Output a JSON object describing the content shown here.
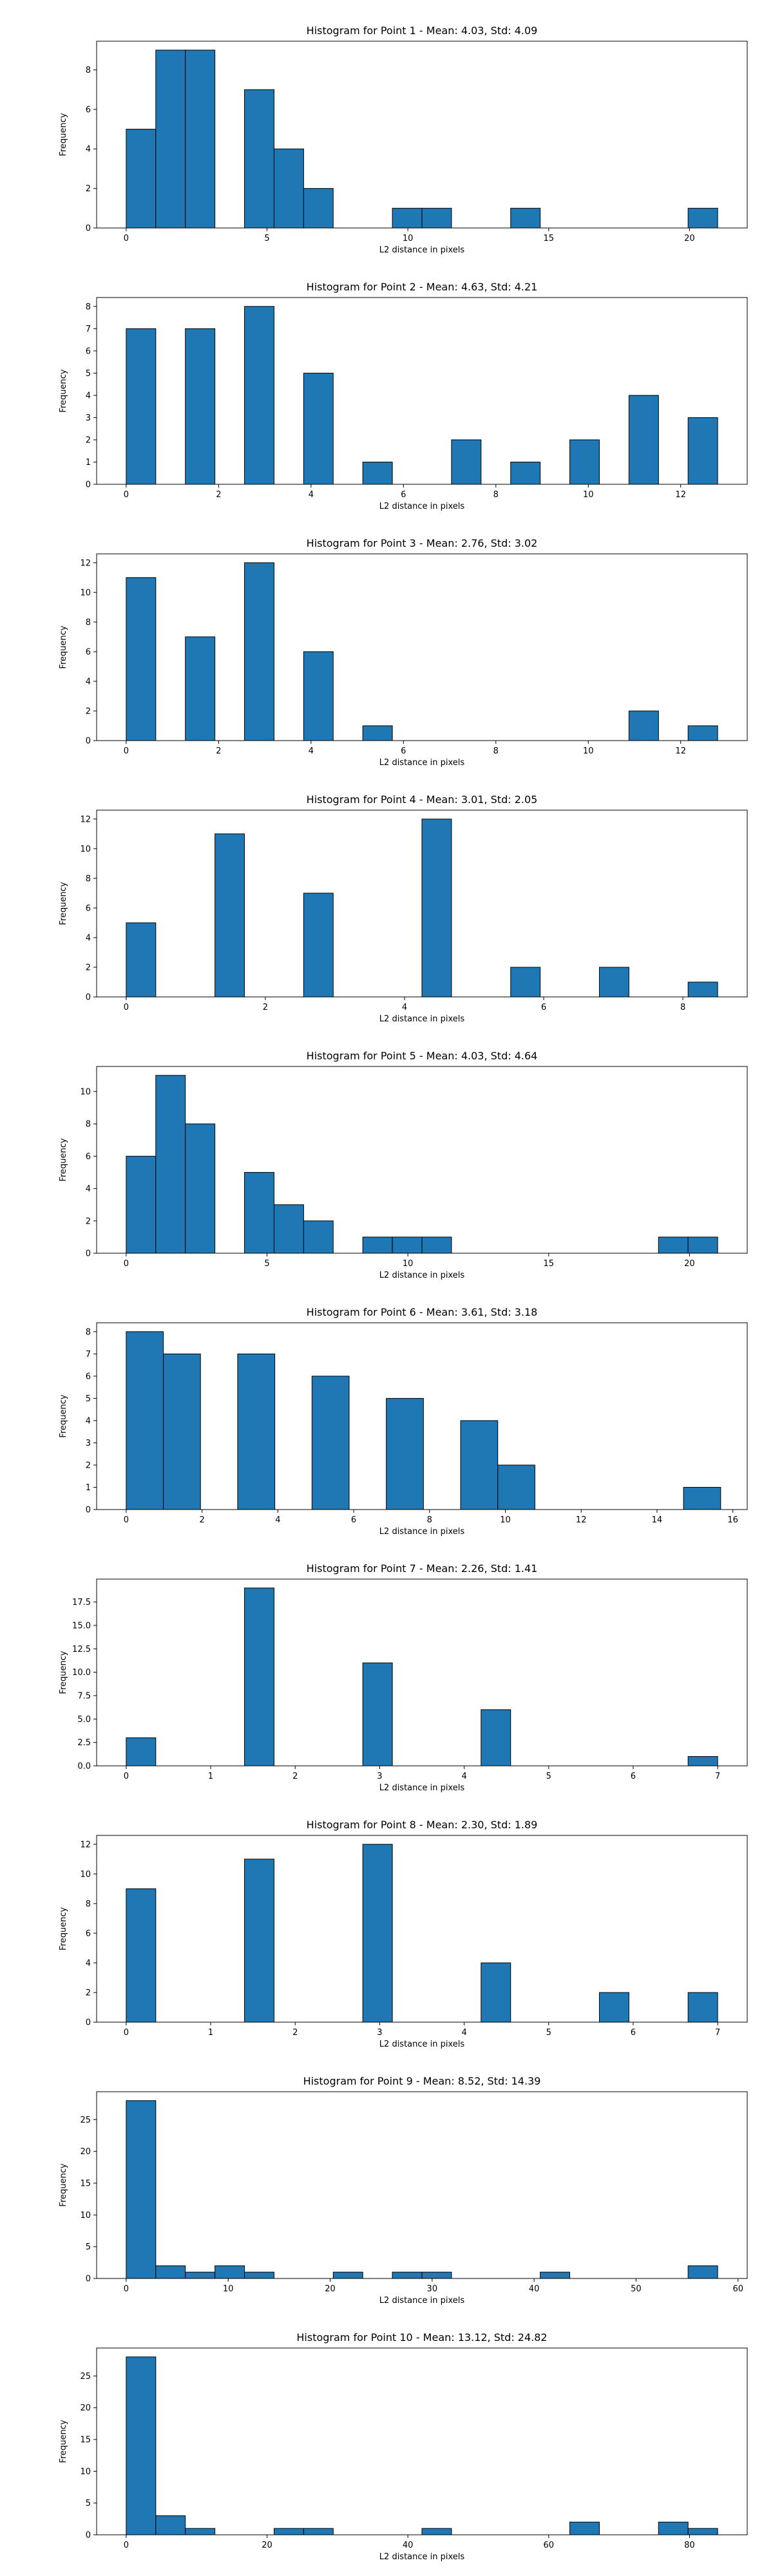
{
  "chart_data": [
    {
      "type": "bar",
      "title": "Histogram for Point 1 - Mean: 4.03, Std: 4.09",
      "xlabel": "L2 distance in pixels",
      "ylabel": "Frequency",
      "xlim": [
        -1.05,
        22.05
      ],
      "ylim": [
        0,
        9.45
      ],
      "xticks": [
        0,
        5,
        10,
        15,
        20
      ],
      "yticks": [
        0,
        2,
        4,
        6,
        8
      ],
      "color": "#1f77b4",
      "grid": false,
      "bins": [
        [
          0,
          1.05,
          5
        ],
        [
          1.05,
          2.1,
          9
        ],
        [
          2.1,
          3.15,
          9
        ],
        [
          4.2,
          5.25,
          7
        ],
        [
          5.25,
          6.3,
          4
        ],
        [
          6.3,
          7.35,
          2
        ],
        [
          9.45,
          10.5,
          1
        ],
        [
          10.5,
          11.55,
          1
        ],
        [
          13.65,
          14.7,
          1
        ],
        [
          19.95,
          21.0,
          1
        ]
      ]
    },
    {
      "type": "bar",
      "title": "Histogram for Point 2 - Mean: 4.63, Std: 4.21",
      "xlabel": "L2 distance in pixels",
      "ylabel": "Frequency",
      "xlim": [
        -0.64,
        13.44
      ],
      "ylim": [
        0,
        8.4
      ],
      "xticks": [
        0,
        2,
        4,
        6,
        8,
        10,
        12
      ],
      "yticks": [
        0,
        1,
        2,
        3,
        4,
        5,
        6,
        7,
        8
      ],
      "color": "#1f77b4",
      "grid": false,
      "bins": [
        [
          0,
          0.64,
          7
        ],
        [
          1.28,
          1.92,
          7
        ],
        [
          2.56,
          3.2,
          8
        ],
        [
          3.84,
          4.48,
          5
        ],
        [
          5.12,
          5.76,
          1
        ],
        [
          7.04,
          7.68,
          2
        ],
        [
          8.32,
          8.96,
          1
        ],
        [
          9.6,
          10.24,
          2
        ],
        [
          10.88,
          11.52,
          4
        ],
        [
          12.16,
          12.8,
          3
        ]
      ]
    },
    {
      "type": "bar",
      "title": "Histogram for Point 3 - Mean: 2.76, Std: 3.02",
      "xlabel": "L2 distance in pixels",
      "ylabel": "Frequency",
      "xlim": [
        -0.64,
        13.44
      ],
      "ylim": [
        0,
        12.6
      ],
      "xticks": [
        0,
        2,
        4,
        6,
        8,
        10,
        12
      ],
      "yticks": [
        0,
        2,
        4,
        6,
        8,
        10,
        12
      ],
      "color": "#1f77b4",
      "grid": false,
      "bins": [
        [
          0,
          0.64,
          11
        ],
        [
          1.28,
          1.92,
          7
        ],
        [
          2.56,
          3.2,
          12
        ],
        [
          3.84,
          4.48,
          6
        ],
        [
          5.12,
          5.76,
          1
        ],
        [
          10.88,
          11.52,
          2
        ],
        [
          12.16,
          12.8,
          1
        ]
      ]
    },
    {
      "type": "bar",
      "title": "Histogram for Point 4 - Mean: 3.01, Std: 2.05",
      "xlabel": "L2 distance in pixels",
      "ylabel": "Frequency",
      "xlim": [
        -0.425,
        8.925
      ],
      "ylim": [
        0,
        12.6
      ],
      "xticks": [
        0,
        2,
        4,
        6,
        8
      ],
      "yticks": [
        0,
        2,
        4,
        6,
        8,
        10,
        12
      ],
      "color": "#1f77b4",
      "grid": false,
      "bins": [
        [
          0,
          0.425,
          5
        ],
        [
          1.275,
          1.7,
          11
        ],
        [
          2.55,
          2.975,
          7
        ],
        [
          4.25,
          4.675,
          12
        ],
        [
          5.525,
          5.95,
          2
        ],
        [
          6.8,
          7.225,
          2
        ],
        [
          8.075,
          8.5,
          1
        ]
      ]
    },
    {
      "type": "bar",
      "title": "Histogram for Point 5 - Mean: 4.03, Std: 4.64",
      "xlabel": "L2 distance in pixels",
      "ylabel": "Frequency",
      "xlim": [
        -1.05,
        22.05
      ],
      "ylim": [
        0,
        11.55
      ],
      "xticks": [
        0,
        5,
        10,
        15,
        20
      ],
      "yticks": [
        0,
        2,
        4,
        6,
        8,
        10
      ],
      "color": "#1f77b4",
      "grid": false,
      "bins": [
        [
          0,
          1.05,
          6
        ],
        [
          1.05,
          2.1,
          11
        ],
        [
          2.1,
          3.15,
          8
        ],
        [
          4.2,
          5.25,
          5
        ],
        [
          5.25,
          6.3,
          3
        ],
        [
          6.3,
          7.35,
          2
        ],
        [
          8.4,
          9.45,
          1
        ],
        [
          9.45,
          10.5,
          1
        ],
        [
          10.5,
          11.55,
          1
        ],
        [
          18.9,
          19.95,
          1
        ],
        [
          19.95,
          21.0,
          1
        ]
      ]
    },
    {
      "type": "bar",
      "title": "Histogram for Point 6 - Mean: 3.61, Std: 3.18",
      "xlabel": "L2 distance in pixels",
      "ylabel": "Frequency",
      "xlim": [
        -0.78,
        16.38
      ],
      "ylim": [
        0,
        8.4
      ],
      "xticks": [
        0,
        2,
        4,
        6,
        8,
        10,
        12,
        14,
        16
      ],
      "yticks": [
        0,
        1,
        2,
        3,
        4,
        5,
        6,
        7,
        8
      ],
      "color": "#1f77b4",
      "grid": false,
      "bins": [
        [
          0,
          0.98,
          8
        ],
        [
          0.98,
          1.96,
          7
        ],
        [
          2.94,
          3.92,
          7
        ],
        [
          4.9,
          5.88,
          6
        ],
        [
          6.86,
          7.84,
          5
        ],
        [
          8.82,
          9.8,
          4
        ],
        [
          9.8,
          10.78,
          2
        ],
        [
          14.7,
          15.68,
          1
        ]
      ]
    },
    {
      "type": "bar",
      "title": "Histogram for Point 7 - Mean: 2.26, Std: 1.41",
      "xlabel": "L2 distance in pixels",
      "ylabel": "Frequency",
      "xlim": [
        -0.35,
        7.35
      ],
      "ylim": [
        0,
        19.95
      ],
      "xticks": [
        0,
        1,
        2,
        3,
        4,
        5,
        6,
        7
      ],
      "yticks": [
        0.0,
        2.5,
        5.0,
        7.5,
        10.0,
        12.5,
        15.0,
        17.5
      ],
      "ytick_labels": [
        "0.0",
        "2.5",
        "5.0",
        "7.5",
        "10.0",
        "12.5",
        "15.0",
        "17.5"
      ],
      "color": "#1f77b4",
      "grid": false,
      "bins": [
        [
          0,
          0.35,
          3
        ],
        [
          1.4,
          1.75,
          19
        ],
        [
          2.8,
          3.15,
          11
        ],
        [
          4.2,
          4.55,
          6
        ],
        [
          6.65,
          7.0,
          1
        ]
      ]
    },
    {
      "type": "bar",
      "title": "Histogram for Point 8 - Mean: 2.30, Std: 1.89",
      "xlabel": "L2 distance in pixels",
      "ylabel": "Frequency",
      "xlim": [
        -0.35,
        7.35
      ],
      "ylim": [
        0,
        12.6
      ],
      "xticks": [
        0,
        1,
        2,
        3,
        4,
        5,
        6,
        7
      ],
      "yticks": [
        0,
        2,
        4,
        6,
        8,
        10,
        12
      ],
      "color": "#1f77b4",
      "grid": false,
      "bins": [
        [
          0,
          0.35,
          9
        ],
        [
          1.4,
          1.75,
          11
        ],
        [
          2.8,
          3.15,
          12
        ],
        [
          4.2,
          4.55,
          4
        ],
        [
          5.6,
          5.95,
          2
        ],
        [
          6.65,
          7.0,
          2
        ]
      ]
    },
    {
      "type": "bar",
      "title": "Histogram for Point 9 - Mean: 8.52, Std: 14.39",
      "xlabel": "L2 distance in pixels",
      "ylabel": "Frequency",
      "xlim": [
        -2.9,
        60.9
      ],
      "ylim": [
        0,
        29.4
      ],
      "xticks": [
        0,
        10,
        20,
        30,
        40,
        50,
        60
      ],
      "yticks": [
        0,
        5,
        10,
        15,
        20,
        25
      ],
      "color": "#1f77b4",
      "grid": false,
      "bins": [
        [
          0,
          2.9,
          28
        ],
        [
          2.9,
          5.8,
          2
        ],
        [
          5.8,
          8.7,
          1
        ],
        [
          8.7,
          11.6,
          2
        ],
        [
          11.6,
          14.5,
          1
        ],
        [
          20.3,
          23.2,
          1
        ],
        [
          26.1,
          29.0,
          1
        ],
        [
          29.0,
          31.9,
          1
        ],
        [
          40.6,
          43.5,
          1
        ],
        [
          55.1,
          58.0,
          2
        ]
      ]
    },
    {
      "type": "bar",
      "title": "Histogram for Point 10 - Mean: 13.12, Std: 24.82",
      "xlabel": "L2 distance in pixels",
      "ylabel": "Frequency",
      "xlim": [
        -4.2,
        88.2
      ],
      "ylim": [
        0,
        29.4
      ],
      "xticks": [
        0,
        20,
        40,
        60,
        80
      ],
      "yticks": [
        0,
        5,
        10,
        15,
        20,
        25
      ],
      "color": "#1f77b4",
      "grid": false,
      "bins": [
        [
          0,
          4.2,
          28
        ],
        [
          4.2,
          8.4,
          3
        ],
        [
          8.4,
          12.6,
          1
        ],
        [
          21.0,
          25.2,
          1
        ],
        [
          25.2,
          29.4,
          1
        ],
        [
          42.0,
          46.2,
          1
        ],
        [
          63.0,
          67.2,
          2
        ],
        [
          75.6,
          79.8,
          2
        ],
        [
          79.8,
          84.0,
          1
        ]
      ]
    }
  ]
}
